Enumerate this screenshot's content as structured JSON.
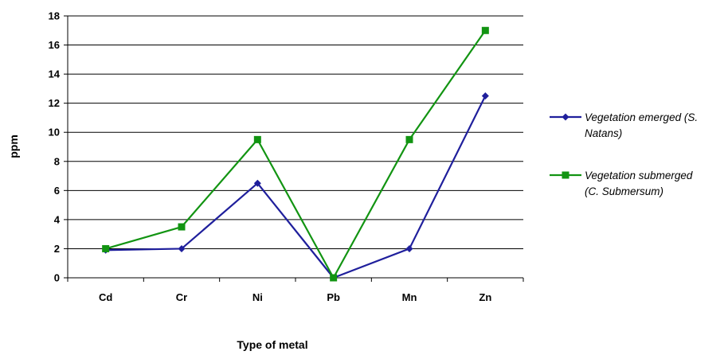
{
  "chart_data": {
    "type": "line",
    "categories": [
      "Cd",
      "Cr",
      "Ni",
      "Pb",
      "Mn",
      "Zn"
    ],
    "series": [
      {
        "name": "Vegetation emerged (S. Natans)",
        "legend_lines": [
          "Vegetation emerged (S.",
          "Natans)"
        ],
        "color": "#1f1f9c",
        "marker": "diamond",
        "values": [
          1.9,
          2.0,
          6.5,
          0.0,
          2.0,
          12.5
        ]
      },
      {
        "name": "Vegetation submerged (C. Submersum)",
        "legend_lines": [
          "Vegetation submerged",
          "(C. Submersum)"
        ],
        "color": "#129412",
        "marker": "square",
        "values": [
          2.0,
          3.5,
          9.5,
          0.0,
          9.5,
          17.0
        ]
      }
    ],
    "xlabel": "Type of metal",
    "ylabel": "ppm",
    "ylim": [
      0,
      18
    ],
    "yticks": [
      "0",
      "2",
      "4",
      "6",
      "8",
      "10",
      "12",
      "14",
      "16",
      "18"
    ],
    "grid": true,
    "legend_position": "right"
  }
}
